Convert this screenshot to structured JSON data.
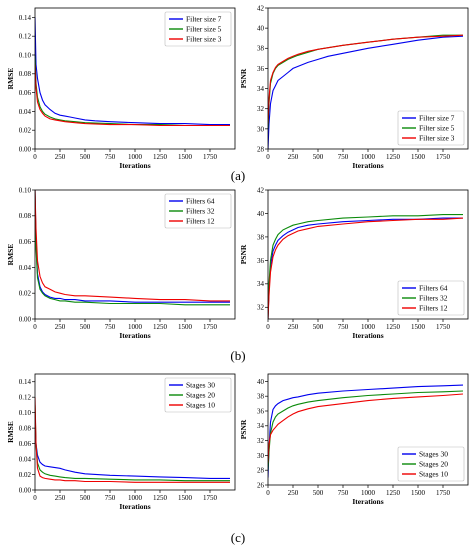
{
  "figure": {
    "row_labels": [
      "(a)",
      "(b)",
      "(c)"
    ]
  },
  "chart_data": [
    {
      "type": "line",
      "panel": "a-left",
      "xlabel": "Iterations",
      "ylabel": "RMSE",
      "xlim": [
        0,
        2000
      ],
      "ylim": [
        0,
        0.15
      ],
      "xticks": [
        0,
        250,
        500,
        750,
        1000,
        1250,
        1500,
        1750
      ],
      "yticks": [
        0.0,
        0.02,
        0.04,
        0.06,
        0.08,
        0.1,
        0.12,
        0.14
      ],
      "ytick_labels": [
        "0.00",
        "0.02",
        "0.04",
        "0.06",
        "0.08",
        "0.10",
        "0.12",
        "0.14"
      ],
      "legend": "top-right",
      "grid": false,
      "series": [
        {
          "name": "Filter size 7",
          "color": "#0000ee",
          "x": [
            0,
            10,
            25,
            50,
            75,
            100,
            150,
            200,
            250,
            300,
            350,
            400,
            500,
            600,
            750,
            1000,
            1250,
            1500,
            1750,
            1950
          ],
          "y": [
            0.14,
            0.09,
            0.075,
            0.06,
            0.052,
            0.047,
            0.042,
            0.038,
            0.036,
            0.035,
            0.034,
            0.033,
            0.031,
            0.03,
            0.029,
            0.028,
            0.027,
            0.027,
            0.026,
            0.026
          ]
        },
        {
          "name": "Filter size 5",
          "color": "#0a8a0a",
          "x": [
            0,
            10,
            25,
            50,
            75,
            100,
            150,
            200,
            250,
            300,
            400,
            500,
            750,
            1000,
            1250,
            1500,
            1750,
            1950
          ],
          "y": [
            0.1,
            0.07,
            0.055,
            0.045,
            0.04,
            0.037,
            0.034,
            0.032,
            0.031,
            0.03,
            0.029,
            0.028,
            0.027,
            0.026,
            0.026,
            0.025,
            0.025,
            0.025
          ]
        },
        {
          "name": "Filter size 3",
          "color": "#ee0000",
          "x": [
            0,
            10,
            25,
            50,
            75,
            100,
            150,
            200,
            250,
            300,
            400,
            500,
            750,
            1000,
            1250,
            1500,
            1750,
            1950
          ],
          "y": [
            0.09,
            0.065,
            0.05,
            0.042,
            0.038,
            0.035,
            0.032,
            0.031,
            0.03,
            0.029,
            0.028,
            0.027,
            0.026,
            0.026,
            0.025,
            0.025,
            0.025,
            0.025
          ]
        }
      ]
    },
    {
      "type": "line",
      "panel": "a-right",
      "xlabel": "Iterations",
      "ylabel": "PSNR",
      "xlim": [
        0,
        2000
      ],
      "ylim": [
        28,
        42
      ],
      "xticks": [
        0,
        250,
        500,
        750,
        1000,
        1250,
        1500,
        1750
      ],
      "yticks": [
        28,
        30,
        32,
        34,
        36,
        38,
        40,
        42
      ],
      "ytick_labels": [
        "28",
        "30",
        "32",
        "34",
        "36",
        "38",
        "40",
        "42"
      ],
      "legend": "bottom-right",
      "grid": false,
      "series": [
        {
          "name": "Filter size 7",
          "color": "#0000ee",
          "x": [
            0,
            10,
            25,
            50,
            75,
            100,
            150,
            200,
            250,
            300,
            400,
            500,
            600,
            750,
            1000,
            1250,
            1500,
            1750,
            1950
          ],
          "y": [
            28,
            30.5,
            32.5,
            33.8,
            34.3,
            34.8,
            35.2,
            35.6,
            36.0,
            36.2,
            36.6,
            36.9,
            37.2,
            37.5,
            38.0,
            38.4,
            38.8,
            39.1,
            39.2
          ]
        },
        {
          "name": "Filter size 5",
          "color": "#0a8a0a",
          "x": [
            0,
            10,
            25,
            50,
            75,
            100,
            150,
            200,
            250,
            300,
            400,
            500,
            750,
            1000,
            1250,
            1500,
            1750,
            1950
          ],
          "y": [
            30,
            32.5,
            34.5,
            35.5,
            36.0,
            36.3,
            36.6,
            36.9,
            37.1,
            37.3,
            37.6,
            37.9,
            38.3,
            38.6,
            38.9,
            39.1,
            39.3,
            39.3
          ]
        },
        {
          "name": "Filter size 3",
          "color": "#ee0000",
          "x": [
            0,
            10,
            25,
            50,
            75,
            100,
            150,
            200,
            250,
            300,
            400,
            500,
            750,
            1000,
            1250,
            1500,
            1750,
            1950
          ],
          "y": [
            30.5,
            33,
            34.8,
            35.6,
            36.1,
            36.4,
            36.7,
            37.0,
            37.2,
            37.4,
            37.7,
            37.9,
            38.3,
            38.6,
            38.9,
            39.1,
            39.2,
            39.3
          ]
        }
      ]
    },
    {
      "type": "line",
      "panel": "b-left",
      "xlabel": "Iterations",
      "ylabel": "RMSE",
      "xlim": [
        0,
        2000
      ],
      "ylim": [
        0,
        0.1
      ],
      "xticks": [
        0,
        250,
        500,
        750,
        1000,
        1250,
        1500,
        1750
      ],
      "yticks": [
        0.0,
        0.02,
        0.04,
        0.06,
        0.08,
        0.1
      ],
      "ytick_labels": [
        "0.00",
        "0.02",
        "0.04",
        "0.06",
        "0.08",
        "0.10"
      ],
      "legend": "top-right",
      "grid": false,
      "series": [
        {
          "name": "Filters 64",
          "color": "#0000ee",
          "x": [
            0,
            10,
            25,
            50,
            75,
            100,
            150,
            200,
            250,
            300,
            400,
            500,
            750,
            1000,
            1250,
            1500,
            1750,
            1950
          ],
          "y": [
            0.1,
            0.06,
            0.035,
            0.025,
            0.021,
            0.019,
            0.017,
            0.016,
            0.016,
            0.015,
            0.015,
            0.014,
            0.014,
            0.013,
            0.013,
            0.013,
            0.013,
            0.013
          ]
        },
        {
          "name": "Filters 32",
          "color": "#0a8a0a",
          "x": [
            0,
            10,
            25,
            50,
            75,
            100,
            150,
            200,
            250,
            300,
            400,
            500,
            750,
            1000,
            1250,
            1500,
            1750,
            1950
          ],
          "y": [
            0.1,
            0.055,
            0.032,
            0.023,
            0.02,
            0.018,
            0.016,
            0.015,
            0.014,
            0.014,
            0.013,
            0.013,
            0.012,
            0.012,
            0.012,
            0.011,
            0.011,
            0.011
          ]
        },
        {
          "name": "Filters 12",
          "color": "#ee0000",
          "x": [
            0,
            10,
            25,
            50,
            75,
            100,
            150,
            200,
            250,
            300,
            400,
            500,
            750,
            1000,
            1250,
            1500,
            1750,
            1950
          ],
          "y": [
            0.1,
            0.07,
            0.045,
            0.033,
            0.028,
            0.025,
            0.023,
            0.021,
            0.02,
            0.019,
            0.018,
            0.018,
            0.017,
            0.016,
            0.015,
            0.015,
            0.014,
            0.014
          ]
        }
      ]
    },
    {
      "type": "line",
      "panel": "b-right",
      "xlabel": "Iterations",
      "ylabel": "PSNR",
      "xlim": [
        0,
        2000
      ],
      "ylim": [
        31,
        42
      ],
      "xticks": [
        0,
        250,
        500,
        750,
        1000,
        1250,
        1500,
        1750
      ],
      "yticks": [
        32,
        34,
        36,
        38,
        40,
        42
      ],
      "ytick_labels": [
        "32",
        "34",
        "36",
        "38",
        "40",
        "42"
      ],
      "legend": "bottom-right",
      "grid": false,
      "series": [
        {
          "name": "Filters 64",
          "color": "#0000ee",
          "x": [
            0,
            10,
            25,
            50,
            75,
            100,
            150,
            200,
            250,
            300,
            400,
            500,
            750,
            1000,
            1250,
            1500,
            1750,
            1950
          ],
          "y": [
            31,
            33.5,
            35.5,
            36.8,
            37.3,
            37.7,
            38.1,
            38.4,
            38.6,
            38.8,
            39.0,
            39.1,
            39.3,
            39.4,
            39.5,
            39.5,
            39.6,
            39.6
          ]
        },
        {
          "name": "Filters 32",
          "color": "#0a8a0a",
          "x": [
            0,
            10,
            25,
            50,
            75,
            100,
            150,
            200,
            250,
            300,
            400,
            500,
            750,
            1000,
            1250,
            1500,
            1750,
            1950
          ],
          "y": [
            31,
            34,
            36,
            37.3,
            37.8,
            38.2,
            38.6,
            38.8,
            39.0,
            39.1,
            39.3,
            39.4,
            39.6,
            39.7,
            39.8,
            39.8,
            39.9,
            39.9
          ]
        },
        {
          "name": "Filters 12",
          "color": "#ee0000",
          "x": [
            0,
            10,
            25,
            50,
            75,
            100,
            150,
            200,
            250,
            300,
            400,
            500,
            750,
            1000,
            1250,
            1500,
            1750,
            1950
          ],
          "y": [
            31,
            33,
            35,
            36.3,
            36.9,
            37.3,
            37.8,
            38.1,
            38.3,
            38.5,
            38.7,
            38.9,
            39.1,
            39.3,
            39.4,
            39.5,
            39.5,
            39.6
          ]
        }
      ]
    },
    {
      "type": "line",
      "panel": "c-left",
      "xlabel": "Iterations",
      "ylabel": "RMSE",
      "xlim": [
        0,
        2000
      ],
      "ylim": [
        0,
        0.15
      ],
      "xticks": [
        0,
        250,
        500,
        750,
        1000,
        1250,
        1500,
        1750
      ],
      "yticks": [
        0.0,
        0.02,
        0.04,
        0.06,
        0.08,
        0.1,
        0.12,
        0.14
      ],
      "ytick_labels": [
        "0.00",
        "0.02",
        "0.04",
        "0.06",
        "0.08",
        "0.10",
        "0.12",
        "0.14"
      ],
      "legend": "top-right",
      "grid": false,
      "series": [
        {
          "name": "Stages 30",
          "color": "#0000ee",
          "x": [
            0,
            10,
            25,
            50,
            75,
            100,
            150,
            200,
            250,
            300,
            400,
            500,
            750,
            1000,
            1250,
            1500,
            1750,
            1950
          ],
          "y": [
            0.09,
            0.06,
            0.045,
            0.036,
            0.033,
            0.031,
            0.03,
            0.029,
            0.028,
            0.026,
            0.023,
            0.021,
            0.019,
            0.018,
            0.017,
            0.016,
            0.015,
            0.015
          ]
        },
        {
          "name": "Stages 20",
          "color": "#0a8a0a",
          "x": [
            0,
            10,
            25,
            50,
            75,
            100,
            150,
            200,
            250,
            300,
            400,
            500,
            750,
            1000,
            1250,
            1500,
            1750,
            1950
          ],
          "y": [
            0.11,
            0.06,
            0.035,
            0.026,
            0.023,
            0.021,
            0.019,
            0.018,
            0.017,
            0.016,
            0.015,
            0.015,
            0.014,
            0.013,
            0.013,
            0.012,
            0.012,
            0.012
          ]
        },
        {
          "name": "Stages 10",
          "color": "#ee0000",
          "x": [
            0,
            10,
            25,
            50,
            75,
            100,
            150,
            200,
            250,
            300,
            400,
            500,
            750,
            1000,
            1250,
            1500,
            1750,
            1950
          ],
          "y": [
            0.12,
            0.06,
            0.028,
            0.018,
            0.016,
            0.015,
            0.014,
            0.013,
            0.013,
            0.012,
            0.012,
            0.011,
            0.011,
            0.01,
            0.01,
            0.01,
            0.01,
            0.01
          ]
        }
      ]
    },
    {
      "type": "line",
      "panel": "c-right",
      "xlabel": "Iterations",
      "ylabel": "PSNR",
      "xlim": [
        0,
        2000
      ],
      "ylim": [
        26,
        41
      ],
      "xticks": [
        0,
        250,
        500,
        750,
        1000,
        1250,
        1500,
        1750
      ],
      "yticks": [
        26,
        28,
        30,
        32,
        34,
        36,
        38,
        40
      ],
      "ytick_labels": [
        "26",
        "28",
        "30",
        "32",
        "34",
        "36",
        "38",
        "40"
      ],
      "legend": "bottom-right",
      "grid": false,
      "series": [
        {
          "name": "Stages 30",
          "color": "#0000ee",
          "x": [
            0,
            10,
            25,
            50,
            75,
            100,
            150,
            200,
            250,
            300,
            400,
            500,
            750,
            1000,
            1250,
            1500,
            1750,
            1950
          ],
          "y": [
            27,
            31,
            34.5,
            36.2,
            36.7,
            37.0,
            37.4,
            37.6,
            37.8,
            37.9,
            38.2,
            38.4,
            38.7,
            38.9,
            39.1,
            39.3,
            39.4,
            39.5
          ]
        },
        {
          "name": "Stages 20",
          "color": "#0a8a0a",
          "x": [
            0,
            10,
            25,
            50,
            75,
            100,
            150,
            200,
            250,
            300,
            400,
            500,
            750,
            1000,
            1250,
            1500,
            1750,
            1950
          ],
          "y": [
            28,
            30.5,
            33,
            34.5,
            35.2,
            35.6,
            36.0,
            36.4,
            36.7,
            36.9,
            37.2,
            37.4,
            37.8,
            38.1,
            38.3,
            38.5,
            38.6,
            38.7
          ]
        },
        {
          "name": "Stages 10",
          "color": "#ee0000",
          "x": [
            0,
            10,
            25,
            50,
            75,
            100,
            150,
            200,
            250,
            300,
            400,
            500,
            750,
            1000,
            1250,
            1500,
            1750,
            1950
          ],
          "y": [
            29,
            31.5,
            32.8,
            33.4,
            33.8,
            34.2,
            34.7,
            35.2,
            35.6,
            35.9,
            36.3,
            36.6,
            37.0,
            37.4,
            37.7,
            37.9,
            38.1,
            38.3
          ]
        }
      ]
    }
  ]
}
